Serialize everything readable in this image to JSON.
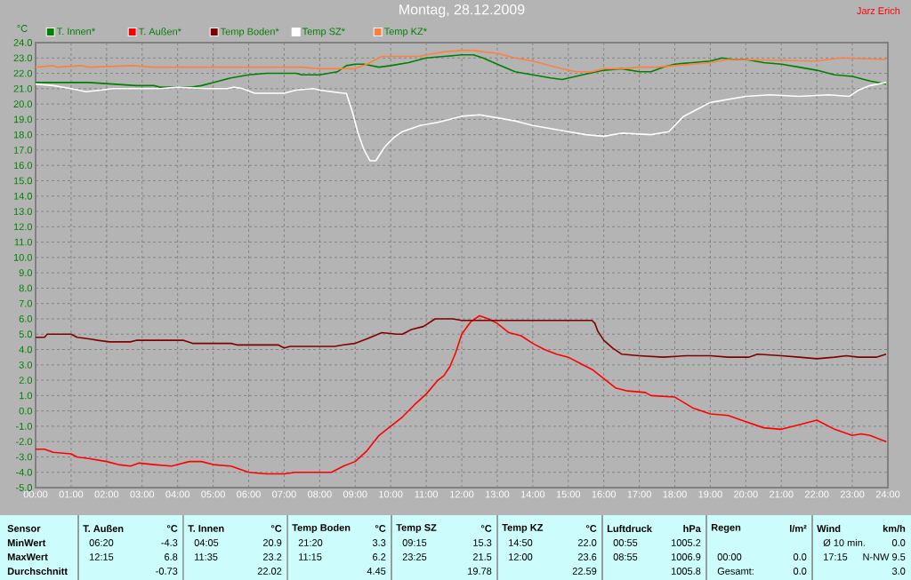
{
  "chart_data": {
    "type": "line",
    "title": "Montag, 28.12.2009",
    "ylabel": "°C",
    "xlim": [
      0,
      24
    ],
    "ylim": [
      -5,
      24
    ],
    "xticks": [
      {
        "value": 0,
        "label": "00:00"
      },
      {
        "value": 1,
        "label": "01:00"
      },
      {
        "value": 2,
        "label": "02:00"
      },
      {
        "value": 3,
        "label": "03:00"
      },
      {
        "value": 4,
        "label": "04:00"
      },
      {
        "value": 5,
        "label": "05:00"
      },
      {
        "value": 6,
        "label": "06:00"
      },
      {
        "value": 7,
        "label": "07:00"
      },
      {
        "value": 8,
        "label": "08:00"
      },
      {
        "value": 9,
        "label": "09:00"
      },
      {
        "value": 10,
        "label": "10:00"
      },
      {
        "value": 11,
        "label": "11:00"
      },
      {
        "value": 12,
        "label": "12:00"
      },
      {
        "value": 13,
        "label": "13:00"
      },
      {
        "value": 14,
        "label": "14:00"
      },
      {
        "value": 15,
        "label": "15:00"
      },
      {
        "value": 16,
        "label": "16:00"
      },
      {
        "value": 17,
        "label": "17:00"
      },
      {
        "value": 18,
        "label": "18:00"
      },
      {
        "value": 19,
        "label": "19:00"
      },
      {
        "value": 20,
        "label": "20:00"
      },
      {
        "value": 21,
        "label": "21:00"
      },
      {
        "value": 22,
        "label": "22:00"
      },
      {
        "value": 23,
        "label": "23:00"
      },
      {
        "value": 24,
        "label": "24:00"
      }
    ],
    "yticks": [
      {
        "value": -5,
        "label": "-5.0"
      },
      {
        "value": -4,
        "label": "-4.0"
      },
      {
        "value": -3,
        "label": "-3.0"
      },
      {
        "value": -2,
        "label": "-2.0"
      },
      {
        "value": -1,
        "label": "-1.0"
      },
      {
        "value": 0,
        "label": "0.0"
      },
      {
        "value": 1,
        "label": "1.0"
      },
      {
        "value": 2,
        "label": "2.0"
      },
      {
        "value": 3,
        "label": "3.0"
      },
      {
        "value": 4,
        "label": "4.0"
      },
      {
        "value": 5,
        "label": "5.0"
      },
      {
        "value": 6,
        "label": "6.0"
      },
      {
        "value": 7,
        "label": "7.0"
      },
      {
        "value": 8,
        "label": "8.0"
      },
      {
        "value": 9,
        "label": "9.0"
      },
      {
        "value": 10,
        "label": "10.0"
      },
      {
        "value": 11,
        "label": "11.0"
      },
      {
        "value": 12,
        "label": "12.0"
      },
      {
        "value": 13,
        "label": "13.0"
      },
      {
        "value": 14,
        "label": "14.0"
      },
      {
        "value": 15,
        "label": "15.0"
      },
      {
        "value": 16,
        "label": "16.0"
      },
      {
        "value": 17,
        "label": "17.0"
      },
      {
        "value": 18,
        "label": "18.0"
      },
      {
        "value": 19,
        "label": "19.0"
      },
      {
        "value": 20,
        "label": "20.0"
      },
      {
        "value": 21,
        "label": "21.0"
      },
      {
        "value": 22,
        "label": "22.0"
      },
      {
        "value": 23,
        "label": "23.0"
      },
      {
        "value": 24,
        "label": "24.0"
      }
    ],
    "grid": true,
    "legend": "top",
    "series": [
      {
        "name": "T. Innen*",
        "color": "#008000",
        "x": [
          0,
          1.5,
          2.17,
          2.83,
          3.33,
          3.5,
          4.4,
          4.67,
          5,
          5.5,
          6,
          6.5,
          7,
          7.33,
          7.5,
          8,
          8.5,
          8.75,
          9,
          9.25,
          9.67,
          10,
          10.5,
          11,
          11.5,
          12,
          12.33,
          12.6,
          13,
          13.5,
          14,
          14.5,
          14.83,
          15.4,
          16,
          16.5,
          17,
          17.33,
          17.67,
          18,
          18.5,
          19,
          19.33,
          19.67,
          20,
          20.5,
          21,
          21.5,
          22,
          22.5,
          23,
          23.5,
          23.95
        ],
        "values": [
          21.4,
          21.4,
          21.3,
          21.2,
          21.2,
          21.1,
          21.1,
          21.2,
          21.4,
          21.7,
          21.9,
          22.0,
          22.0,
          22.0,
          21.9,
          21.9,
          22.1,
          22.5,
          22.6,
          22.6,
          22.4,
          22.5,
          22.7,
          23.0,
          23.1,
          23.2,
          23.2,
          23.0,
          22.6,
          22.1,
          21.9,
          21.7,
          21.6,
          21.9,
          22.2,
          22.3,
          22.1,
          22.1,
          22.4,
          22.6,
          22.7,
          22.8,
          23.0,
          22.9,
          22.9,
          22.7,
          22.6,
          22.4,
          22.2,
          21.9,
          21.8,
          21.5,
          21.3
        ]
      },
      {
        "name": "T. Außen*",
        "color": "#ff0000",
        "x": [
          0,
          0.25,
          0.5,
          1,
          1.17,
          1.5,
          2,
          2.33,
          2.67,
          2.92,
          3.33,
          3.83,
          4,
          4.33,
          4.67,
          5,
          5.5,
          6,
          6.5,
          7,
          7.33,
          8,
          8.33,
          8.67,
          9,
          9.33,
          9.67,
          10,
          10.33,
          10.67,
          11,
          11.33,
          11.5,
          11.67,
          11.83,
          12,
          12.25,
          12.5,
          12.75,
          13,
          13.33,
          13.67,
          14,
          14.33,
          14.67,
          15,
          15.33,
          15.67,
          16,
          16.33,
          16.67,
          17.17,
          17.33,
          18,
          18.5,
          19,
          19.5,
          20,
          20.5,
          21,
          21.5,
          22,
          22.5,
          23,
          23.25,
          23.5,
          23.95
        ],
        "values": [
          -2.5,
          -2.5,
          -2.7,
          -2.8,
          -3.0,
          -3.1,
          -3.3,
          -3.5,
          -3.6,
          -3.4,
          -3.5,
          -3.6,
          -3.5,
          -3.3,
          -3.3,
          -3.5,
          -3.6,
          -4.0,
          -4.1,
          -4.1,
          -4.0,
          -4.0,
          -4.0,
          -3.6,
          -3.3,
          -2.6,
          -1.6,
          -1.0,
          -0.4,
          0.4,
          1.1,
          2.0,
          2.3,
          2.9,
          3.8,
          5.0,
          5.8,
          6.2,
          6.0,
          5.7,
          5.1,
          4.9,
          4.4,
          4.0,
          3.7,
          3.5,
          3.1,
          2.7,
          2.1,
          1.5,
          1.3,
          1.2,
          1.0,
          0.9,
          0.2,
          -0.2,
          -0.3,
          -0.7,
          -1.1,
          -1.2,
          -0.9,
          -0.6,
          -1.2,
          -1.6,
          -1.5,
          -1.6,
          -2.0
        ]
      },
      {
        "name": "Temp Boden*",
        "color": "#800000",
        "x": [
          0,
          0.25,
          0.33,
          0.5,
          0.92,
          1,
          1.17,
          1.5,
          1.75,
          2.08,
          2.67,
          2.83,
          3.25,
          3.5,
          4.17,
          4.42,
          4.83,
          5.5,
          5.67,
          6.83,
          7,
          7.17,
          8.42,
          8.67,
          9,
          9.33,
          9.75,
          10.17,
          10.33,
          10.58,
          10.92,
          11.25,
          11.75,
          12,
          12.3,
          15.67,
          15.75,
          15.83,
          16,
          16.25,
          16.5,
          17,
          17.67,
          18.33,
          19,
          19.5,
          20.08,
          20.33,
          21,
          21.5,
          22,
          22.5,
          22.83,
          23.17,
          23.67,
          23.95
        ],
        "values": [
          4.8,
          4.8,
          5.0,
          5.0,
          5.0,
          5.0,
          4.8,
          4.7,
          4.6,
          4.5,
          4.5,
          4.6,
          4.6,
          4.6,
          4.6,
          4.4,
          4.4,
          4.4,
          4.3,
          4.3,
          4.1,
          4.2,
          4.2,
          4.3,
          4.4,
          4.7,
          5.1,
          5.0,
          5.0,
          5.3,
          5.5,
          6.0,
          6.0,
          5.9,
          5.9,
          5.9,
          5.7,
          5.2,
          4.6,
          4.1,
          3.7,
          3.6,
          3.5,
          3.6,
          3.6,
          3.5,
          3.5,
          3.7,
          3.6,
          3.5,
          3.4,
          3.5,
          3.6,
          3.5,
          3.5,
          3.7
        ]
      },
      {
        "name": "Temp SZ*",
        "color": "#ffffff",
        "x": [
          0,
          0.5,
          1,
          1.42,
          1.83,
          2.17,
          3.5,
          4,
          4.83,
          5.4,
          5.58,
          5.83,
          6.17,
          6.5,
          7,
          7.33,
          7.83,
          8,
          8.67,
          8.75,
          8.92,
          9.08,
          9.25,
          9.42,
          9.58,
          9.83,
          10.08,
          10.33,
          10.83,
          11.33,
          12,
          12.5,
          13,
          13.5,
          14,
          14.5,
          15,
          15.5,
          16,
          16.5,
          17.33,
          17.83,
          18.25,
          18.67,
          19,
          19.5,
          20,
          20.67,
          21.5,
          22.33,
          22.92,
          23.17,
          23.5,
          23.95
        ],
        "values": [
          21.3,
          21.2,
          21.0,
          20.8,
          20.9,
          21.0,
          21.0,
          21.1,
          21.0,
          21.0,
          21.1,
          21.0,
          20.7,
          20.7,
          20.7,
          20.9,
          21.0,
          20.9,
          20.7,
          20.7,
          19.5,
          18.1,
          17.0,
          16.3,
          16.3,
          17.2,
          17.8,
          18.2,
          18.6,
          18.8,
          19.2,
          19.3,
          19.1,
          18.9,
          18.6,
          18.4,
          18.2,
          18.0,
          17.9,
          18.1,
          18.0,
          18.2,
          19.2,
          19.7,
          20.1,
          20.3,
          20.5,
          20.6,
          20.5,
          20.6,
          20.5,
          20.9,
          21.2,
          21.4
        ]
      },
      {
        "name": "Temp KZ*",
        "color": "#ff8040",
        "x": [
          0,
          0.5,
          0.6,
          1.3,
          1.5,
          2.75,
          3.3,
          7.5,
          8,
          8.4,
          9,
          9.33,
          9.75,
          10.8,
          11,
          11.5,
          12,
          12.33,
          12.6,
          13,
          13.5,
          14,
          14.5,
          15,
          15.25,
          15.67,
          16,
          16.5,
          17,
          17.5,
          18,
          18.5,
          19,
          19.5,
          19.75,
          22,
          22.67,
          23.95
        ],
        "values": [
          22.4,
          22.5,
          22.4,
          22.5,
          22.4,
          22.5,
          22.4,
          22.4,
          22.3,
          22.3,
          22.3,
          22.6,
          23.1,
          23.1,
          23.2,
          23.4,
          23.5,
          23.5,
          23.4,
          23.3,
          23.0,
          22.8,
          22.5,
          22.2,
          22.1,
          22.1,
          22.3,
          22.3,
          22.4,
          22.4,
          22.5,
          22.6,
          22.7,
          22.9,
          22.9,
          22.8,
          23.0,
          22.9
        ]
      }
    ],
    "annotations": [
      "Jarz Erich",
      "Sensor",
      "MinWert",
      "MaxWert",
      "Durchschnitt",
      "T. Außen",
      "°C",
      "06:20",
      "-4.3",
      "12:15",
      "6.8",
      "-0.73",
      "T. Innen",
      "°C",
      "04:05",
      "20.9",
      "11:35",
      "23.2",
      "22.02",
      "Temp Boden",
      "°C",
      "21:20",
      "3.3",
      "11:15",
      "6.2",
      "4.45",
      "Temp SZ",
      "°C",
      "09:15",
      "15.3",
      "23:25",
      "21.5",
      "19.78",
      "Temp KZ",
      "°C",
      "14:50",
      "22.0",
      "12:00",
      "23.6",
      "22.59",
      "Luftdruck",
      "hPa",
      "00:55",
      "1005.2",
      "08:55",
      "1006.9",
      "1005.8",
      "Regen",
      "l/m²",
      "00:00",
      "0.0",
      "Gesamt:",
      "0.0",
      "Wind",
      "km/h",
      "Ø 10 min.",
      "0.0",
      "17:15",
      "N-NW 9.5",
      "3.0"
    ]
  }
}
